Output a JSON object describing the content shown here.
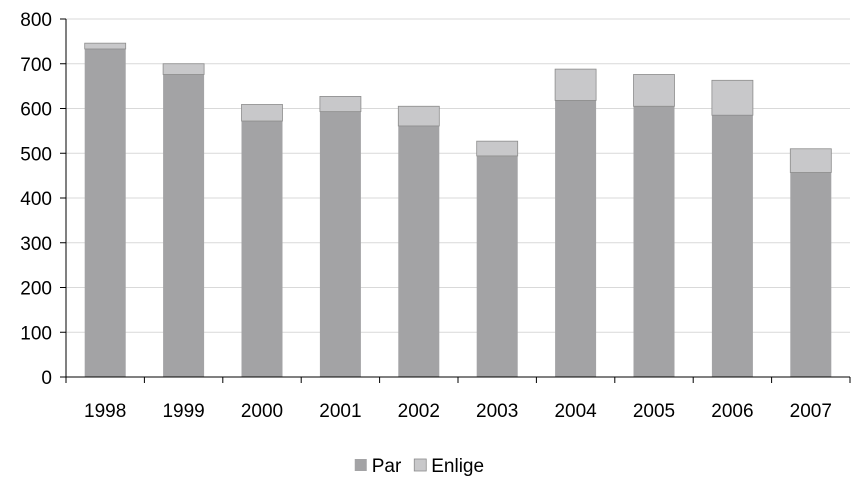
{
  "chart_data": {
    "type": "bar",
    "stacked": true,
    "categories": [
      "1998",
      "1999",
      "2000",
      "2001",
      "2002",
      "2003",
      "2004",
      "2005",
      "2006",
      "2007"
    ],
    "series": [
      {
        "name": "Par",
        "color": "#a3a3a5",
        "values": [
          733,
          676,
          572,
          593,
          561,
          494,
          618,
          605,
          585,
          457
        ]
      },
      {
        "name": "Enlige",
        "color": "#c8c8ca",
        "values": [
          13,
          24,
          37,
          34,
          44,
          33,
          70,
          71,
          78,
          53
        ]
      }
    ],
    "ylim": [
      0,
      800
    ],
    "yticks": [
      "0",
      "100",
      "200",
      "300",
      "400",
      "500",
      "600",
      "700",
      "800"
    ],
    "grid": true,
    "legend_position": "bottom-center",
    "title": "",
    "xlabel": "",
    "ylabel": ""
  }
}
